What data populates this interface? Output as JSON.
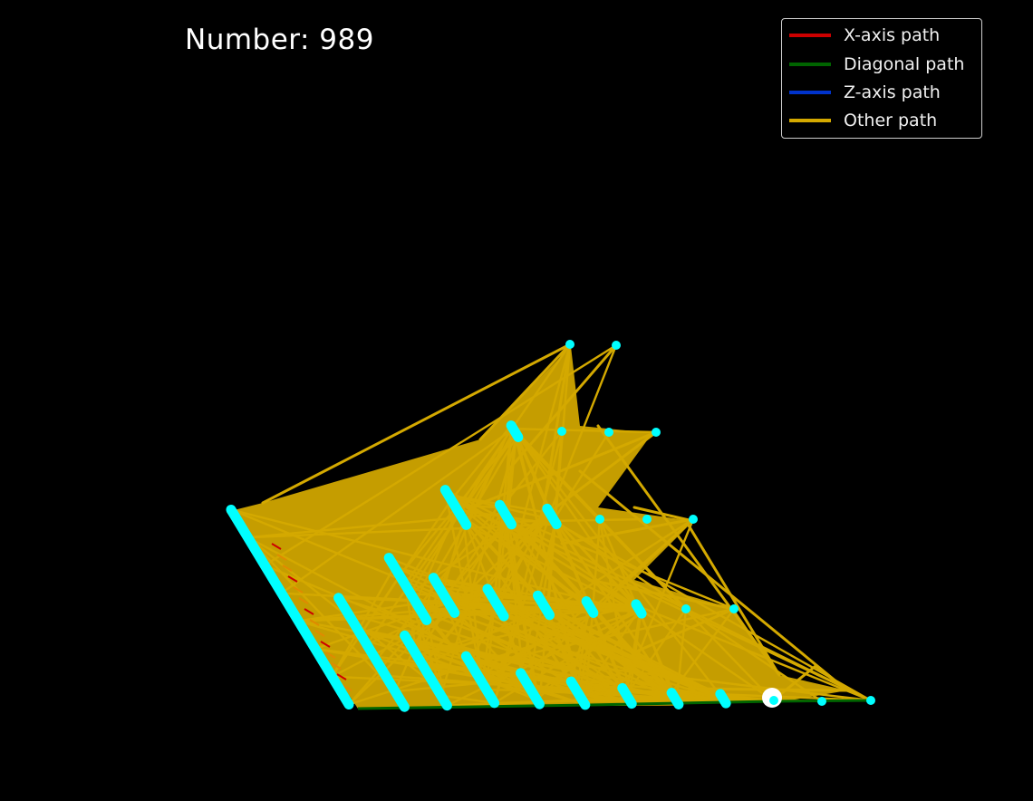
{
  "header": {
    "title": "Number: 989"
  },
  "legend": {
    "items": [
      {
        "label": "X-axis path",
        "color": "#cc0000"
      },
      {
        "label": "Diagonal path",
        "color": "#006400"
      },
      {
        "label": "Z-axis path",
        "color": "#0033cc"
      },
      {
        "label": "Other path",
        "color": "#d4a900"
      }
    ]
  },
  "colors": {
    "background": "#000000",
    "node": "#00ffff",
    "current_node": "#ffffff",
    "other_path": "#d4a900",
    "diagonal_path": "#006400",
    "x_axis_path": "#cc0000",
    "z_axis_path": "#0033cc"
  },
  "chart_data": {
    "type": "line",
    "title": "Number: 989",
    "projection": "3d",
    "axes_visible": false,
    "grid": false,
    "legend_position": "top-right",
    "series": [
      {
        "name": "X-axis path"
      },
      {
        "name": "Diagonal path"
      },
      {
        "name": "Z-axis path"
      },
      {
        "name": "Other path"
      }
    ],
    "current_node_marker": "white"
  }
}
